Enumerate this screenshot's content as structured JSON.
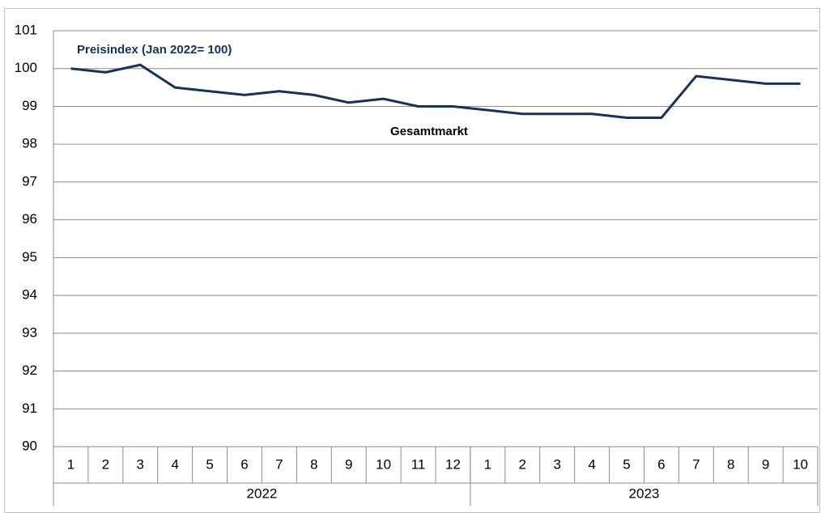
{
  "chart_data": {
    "type": "line",
    "title": "Preisindex (Jan 2022= 100)",
    "categories": [
      {
        "label": "1",
        "group": "2022"
      },
      {
        "label": "2",
        "group": "2022"
      },
      {
        "label": "3",
        "group": "2022"
      },
      {
        "label": "4",
        "group": "2022"
      },
      {
        "label": "5",
        "group": "2022"
      },
      {
        "label": "6",
        "group": "2022"
      },
      {
        "label": "7",
        "group": "2022"
      },
      {
        "label": "8",
        "group": "2022"
      },
      {
        "label": "9",
        "group": "2022"
      },
      {
        "label": "10",
        "group": "2022"
      },
      {
        "label": "11",
        "group": "2022"
      },
      {
        "label": "12",
        "group": "2022"
      },
      {
        "label": "1",
        "group": "2023"
      },
      {
        "label": "2",
        "group": "2023"
      },
      {
        "label": "3",
        "group": "2023"
      },
      {
        "label": "4",
        "group": "2023"
      },
      {
        "label": "5",
        "group": "2023"
      },
      {
        "label": "6",
        "group": "2023"
      },
      {
        "label": "7",
        "group": "2023"
      },
      {
        "label": "8",
        "group": "2023"
      },
      {
        "label": "9",
        "group": "2023"
      },
      {
        "label": "10",
        "group": "2023"
      }
    ],
    "series": [
      {
        "name": "Gesamtmarkt",
        "color": "#16325c",
        "values": [
          100,
          99.9,
          100.1,
          99.5,
          99.4,
          99.3,
          99.4,
          99.3,
          99.1,
          99.2,
          99.0,
          99.0,
          98.9,
          98.8,
          98.8,
          98.8,
          98.7,
          98.7,
          99.8,
          99.7,
          99.6,
          99.6
        ]
      }
    ],
    "ylim": [
      90,
      101
    ],
    "yticks": [
      90,
      91,
      92,
      93,
      94,
      95,
      96,
      97,
      98,
      99,
      100,
      101
    ],
    "grid": true
  }
}
